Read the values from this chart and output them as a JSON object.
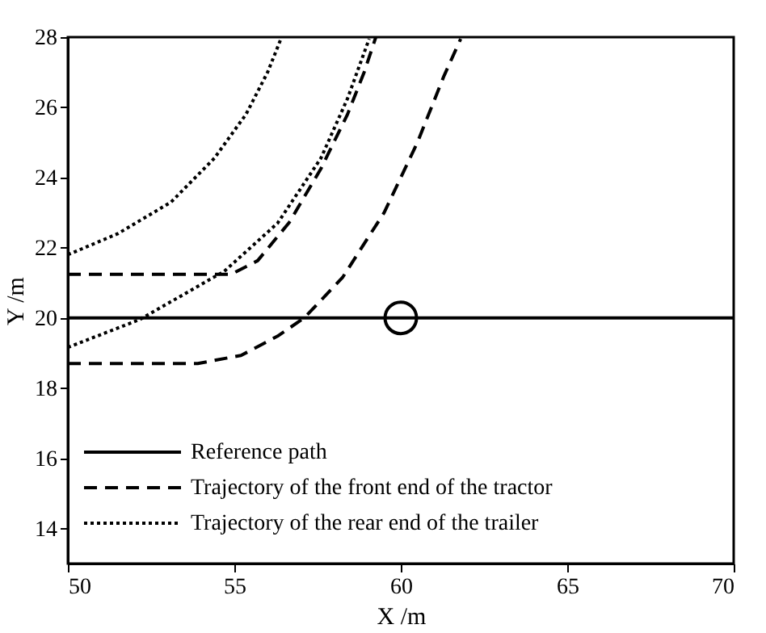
{
  "chart_data": {
    "type": "line",
    "xlabel": "X /m",
    "ylabel": "Y /m",
    "xlim": [
      50,
      70
    ],
    "ylim": [
      13,
      28
    ],
    "xticks": [
      50,
      55,
      60,
      65,
      70
    ],
    "yticks": [
      14,
      16,
      18,
      20,
      22,
      24,
      26,
      28
    ],
    "grid": false,
    "legend": "bottom left",
    "series": [
      {
        "name": "Reference path",
        "color": "#000000",
        "line_style": "solid",
        "x": [
          50,
          70
        ],
        "values": [
          20,
          20
        ]
      },
      {
        "name": "Trajectory of the front end of the tractor",
        "color": "#000000",
        "line_style": "dashed",
        "x": [
          50,
          54.9,
          55.7,
          56.65,
          57.6,
          58.4,
          58.9,
          59.25
        ],
        "values": [
          21.24,
          21.24,
          21.63,
          22.72,
          24.25,
          25.8,
          27.0,
          28.0
        ]
      },
      {
        "color": "#000000",
        "line_style": "dashed",
        "x": [
          50,
          53.9,
          55.2,
          56.3,
          57.1,
          58.25,
          59.5,
          60.5,
          61.3,
          61.8
        ],
        "values": [
          18.7,
          18.7,
          18.93,
          19.48,
          20.0,
          21.15,
          23.0,
          25.0,
          26.9,
          27.95
        ]
      },
      {
        "name": "Trajectory of the rear end of the trailer",
        "color": "#000000",
        "line_style": "dotted",
        "x": [
          50,
          51.5,
          53.1,
          54.4,
          55.35,
          56.0,
          56.4
        ],
        "values": [
          21.8,
          22.4,
          23.3,
          24.55,
          25.8,
          27.0,
          27.95
        ]
      },
      {
        "color": "#000000",
        "line_style": "dotted",
        "x": [
          50,
          52.15,
          54.7,
          56.3,
          57.6,
          58.4,
          59.05
        ],
        "values": [
          19.16,
          19.95,
          21.33,
          22.7,
          24.55,
          26.25,
          27.95
        ]
      },
      {
        "type": "scatter",
        "marker": "circle",
        "color": "#000000",
        "x": [
          60
        ],
        "values": [
          20
        ]
      }
    ]
  }
}
